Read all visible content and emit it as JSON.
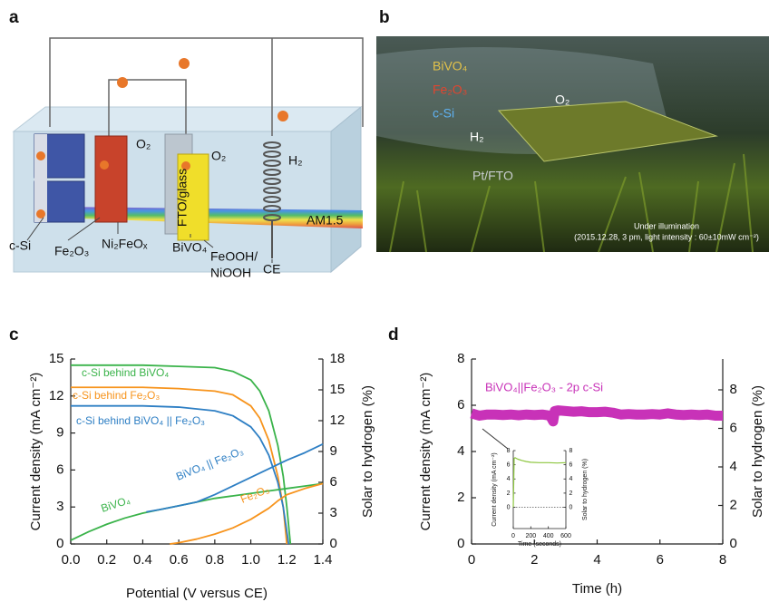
{
  "panel_labels": [
    "a",
    "b",
    "c",
    "d"
  ],
  "diagram": {
    "c_si": "c-Si",
    "fe2o3": "Fe₂O₃",
    "ni2feox": "Ni₂FeOₓ",
    "bivo4": "BiVO₄",
    "feooh_1": "FeOOH/",
    "feooh_2": "NiOOH",
    "ce": "CE",
    "am": "AM1.5",
    "o2_left": "O₂",
    "o2_right": "O₂",
    "h2": "H₂",
    "fto": "FTO/glass"
  },
  "photo": {
    "bivo4": "BiVO₄",
    "fe2o3": "Fe₂O₃",
    "c_si": "c-Si",
    "o2": "O₂",
    "h2": "H₂",
    "pt": "Pt/FTO",
    "caption_1": "Under illumination",
    "caption_2": "(2015.12.28, 3 pm, light intensity : 60±10mW cm⁻²)"
  },
  "chart_data": [
    {
      "type": "line",
      "xlabel": "Potential (V versus CE)",
      "ylabel": "Current density (mA cm⁻²)",
      "y2label": "Solar to hydrogen (%)",
      "xlim": [
        0,
        1.4
      ],
      "xticks": [
        {
          "value": 0,
          "label": "0.0"
        },
        0.2,
        0.4,
        0.6,
        0.8,
        {
          "value": 1,
          "label": "1.0"
        },
        1.2,
        1.4
      ],
      "ylim": [
        0,
        15
      ],
      "yticks": [
        0,
        3,
        6,
        9,
        12,
        15
      ],
      "y2lim": [
        0,
        18
      ],
      "y2ticks": [
        0,
        3,
        6,
        9,
        12,
        15,
        18
      ],
      "series": [
        {
          "name": "c-Si behind BiVO₄",
          "color": "#3ab34a",
          "x": [
            0,
            0.2,
            0.4,
            0.6,
            0.8,
            0.9,
            1.0,
            1.05,
            1.1,
            1.15,
            1.18,
            1.2,
            1.22
          ],
          "values": [
            14.5,
            14.5,
            14.5,
            14.4,
            14.3,
            14.0,
            13.3,
            12.4,
            10.8,
            8.0,
            5.5,
            3.0,
            0
          ]
        },
        {
          "name": "c-Si behind Fe₂O₃",
          "color": "#f7941d",
          "x": [
            0,
            0.2,
            0.4,
            0.6,
            0.8,
            0.9,
            1.0,
            1.05,
            1.1,
            1.15,
            1.18,
            1.2
          ],
          "values": [
            12.7,
            12.7,
            12.7,
            12.6,
            12.4,
            12.1,
            11.2,
            10.2,
            8.4,
            5.5,
            3.0,
            0
          ]
        },
        {
          "name": "c-Si behind BiVO₄ || Fe₂O₃",
          "color": "#2e7fc4",
          "x": [
            0,
            0.2,
            0.4,
            0.6,
            0.8,
            0.9,
            1.0,
            1.05,
            1.1,
            1.15,
            1.18,
            1.21
          ],
          "values": [
            11.2,
            11.2,
            11.2,
            11.1,
            10.8,
            10.4,
            9.5,
            8.6,
            7.2,
            5.0,
            3.0,
            0
          ]
        },
        {
          "name": "BiVO₄",
          "color": "#3ab34a",
          "x": [
            0,
            0.1,
            0.2,
            0.3,
            0.4,
            0.5,
            0.6,
            0.7,
            0.8,
            0.9,
            1.0,
            1.1,
            1.2,
            1.3,
            1.4
          ],
          "values": [
            0.3,
            1.0,
            1.6,
            2.1,
            2.5,
            2.8,
            3.1,
            3.4,
            3.7,
            3.9,
            4.1,
            4.3,
            4.5,
            4.7,
            4.9
          ]
        },
        {
          "name": "BiVO₄ || Fe₂O₃",
          "color": "#2e7fc4",
          "x": [
            0.42,
            0.5,
            0.6,
            0.7,
            0.8,
            0.9,
            1.0,
            1.1,
            1.2,
            1.3,
            1.4
          ],
          "values": [
            2.6,
            2.8,
            3.1,
            3.4,
            4.0,
            4.7,
            5.4,
            6.1,
            6.8,
            7.4,
            8.1
          ]
        },
        {
          "name": "Fe₂O₃",
          "color": "#f7941d",
          "x": [
            0.55,
            0.6,
            0.7,
            0.8,
            0.9,
            1.0,
            1.1,
            1.15,
            1.2,
            1.3,
            1.4
          ],
          "values": [
            0,
            0.1,
            0.4,
            0.8,
            1.3,
            2.0,
            2.9,
            3.5,
            4.0,
            4.5,
            4.9
          ]
        }
      ]
    },
    {
      "type": "line",
      "xlabel": "Time (h)",
      "ylabel": "Current density (mA cm⁻²)",
      "y2label": "Solar to hydrogen (%)",
      "xlim": [
        0,
        8
      ],
      "xticks": [
        0,
        2,
        4,
        6,
        8
      ],
      "ylim": [
        0,
        8
      ],
      "yticks": [
        0,
        2,
        4,
        6,
        8
      ],
      "y2lim": [
        0,
        9.6
      ],
      "y2ticks": [
        0,
        2,
        4,
        6,
        8
      ],
      "series": [
        {
          "name": "BiVO₄||Fe₂O₃ - 2p c-Si",
          "color": "#c832b8",
          "x": [
            0,
            0.25,
            0.5,
            0.75,
            1,
            1.25,
            1.5,
            1.75,
            2,
            2.25,
            2.5,
            2.6,
            2.65,
            2.75,
            3,
            3.25,
            3.5,
            3.75,
            4,
            4.25,
            4.5,
            4.75,
            5,
            5.25,
            5.5,
            5.75,
            6,
            6.25,
            6.5,
            6.75,
            7,
            7.25,
            7.5,
            7.75,
            8
          ],
          "values": [
            5.65,
            5.55,
            5.6,
            5.6,
            5.58,
            5.6,
            5.57,
            5.6,
            5.58,
            5.6,
            5.55,
            5.3,
            5.75,
            5.78,
            5.75,
            5.72,
            5.74,
            5.7,
            5.7,
            5.72,
            5.68,
            5.6,
            5.62,
            5.6,
            5.6,
            5.62,
            5.6,
            5.65,
            5.6,
            5.58,
            5.6,
            5.58,
            5.6,
            5.55,
            5.55
          ]
        }
      ]
    },
    {
      "type": "line",
      "xlabel": "Time (seconds)",
      "ylabel": "Current density (mA cm⁻²)",
      "y2label": "Solar to hydrogen (%)",
      "xlim": [
        0,
        600
      ],
      "xticks": [
        0,
        200,
        400,
        600
      ],
      "ylim": [
        -3,
        8
      ],
      "yticks": [
        0,
        2,
        4,
        6,
        8
      ],
      "y2lim": [
        -3,
        8
      ],
      "y2ticks": [
        0,
        2,
        4,
        6,
        8
      ],
      "series": [
        {
          "color": "#8dc63f",
          "x": [
            0,
            10,
            20,
            50,
            100,
            150,
            200,
            300,
            400,
            500,
            600
          ],
          "values": [
            0,
            6.9,
            7.0,
            6.8,
            6.6,
            6.45,
            6.35,
            6.3,
            6.3,
            6.25,
            6.3
          ]
        }
      ]
    }
  ]
}
